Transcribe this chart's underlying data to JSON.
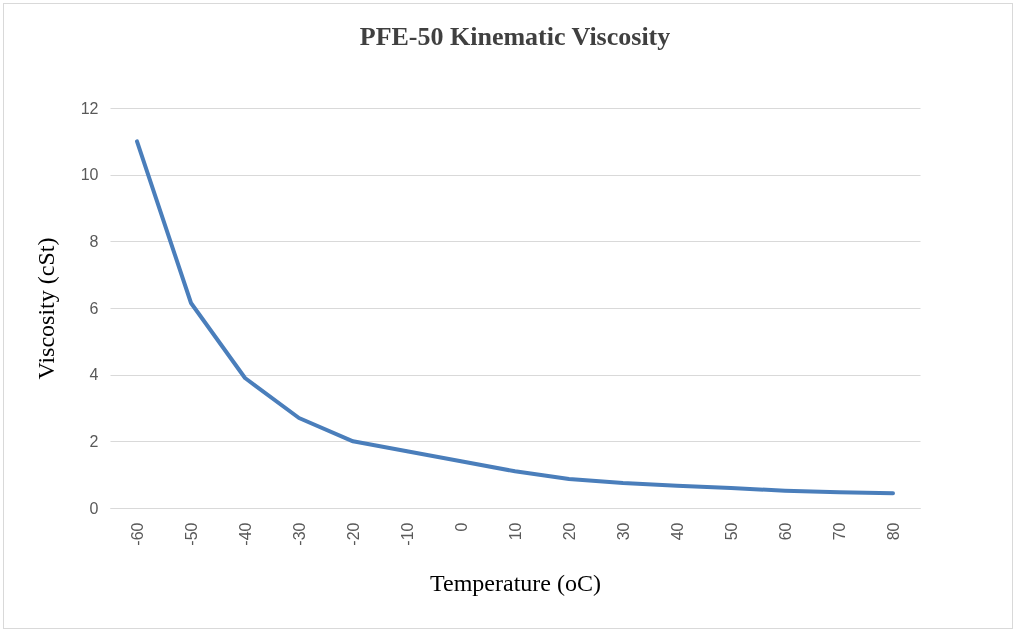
{
  "chart_data": {
    "type": "line",
    "title": "PFE-50 Kinematic Viscosity",
    "xlabel": "Temperature (oC)",
    "ylabel": "Viscosity (cSt)",
    "categories": [
      "-60",
      "-50",
      "-40",
      "-30",
      "-20",
      "-10",
      "0",
      "10",
      "20",
      "30",
      "40",
      "50",
      "60",
      "70",
      "80"
    ],
    "series": [
      {
        "color": "#4a7ebb",
        "values": [
          11,
          6.15,
          3.9,
          2.7,
          2.0,
          1.7,
          1.4,
          1.1,
          0.87,
          0.75,
          0.67,
          0.6,
          0.52,
          0.47,
          0.44
        ]
      }
    ],
    "ylim": [
      0,
      12
    ],
    "yticks": [
      0,
      2,
      4,
      6,
      8,
      10,
      12
    ],
    "grid": "y"
  }
}
